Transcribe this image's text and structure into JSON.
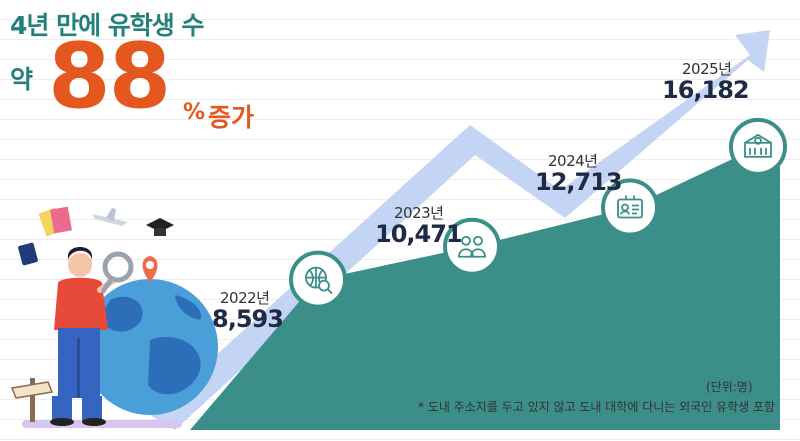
{
  "headline": {
    "title": "4년 만에 유학생 수",
    "prefix": "약",
    "number": "88",
    "percent": "%",
    "suffix": "증가"
  },
  "chart_data": {
    "type": "area",
    "categories": [
      "2022년",
      "2023년",
      "2024년",
      "2025년"
    ],
    "values": [
      8593,
      10471,
      12713,
      16182
    ],
    "value_labels": [
      "8,593",
      "10,471",
      "12,713",
      "16,182"
    ],
    "unit_label": "(단위:명)",
    "footnote": "*  도내 주소지를 두고 있지 않고 도내 대학에 다니는 외국인 유학생 포함",
    "colors": {
      "area": "#3b8f88",
      "arrow": "#c3d4f4",
      "circle_fill": "#ffffff",
      "icon": "#3b8f88",
      "ground": "#d7c7ee"
    }
  },
  "icons": [
    "globe-search-icon",
    "people-icon",
    "id-card-icon",
    "university-building-icon"
  ]
}
